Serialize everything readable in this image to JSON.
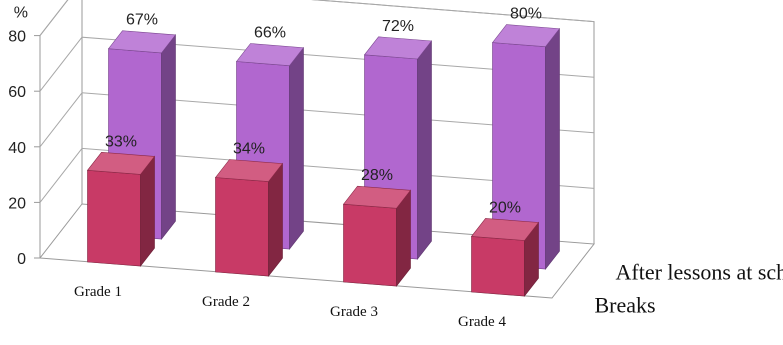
{
  "chart_data": {
    "type": "bar",
    "categories": [
      "Grade 1",
      "Grade 2",
      "Grade 3",
      "Grade 4"
    ],
    "series": [
      {
        "name": "Breaks",
        "values": [
          33,
          34,
          28,
          20
        ],
        "labels": [
          "33%",
          "34%",
          "28%",
          "20%"
        ],
        "color": "#c83a66"
      },
      {
        "name": "After lessons at school",
        "values": [
          67,
          66,
          72,
          80
        ],
        "labels": [
          "67%",
          "66%",
          "72%",
          "80%"
        ],
        "color": "#b167cf"
      }
    ],
    "y_unit": "%",
    "yticks": [
      "0",
      "20",
      "40",
      "60",
      "80"
    ],
    "ylim": [
      0,
      80
    ],
    "grid": true,
    "style": "3d-clustered-column"
  }
}
